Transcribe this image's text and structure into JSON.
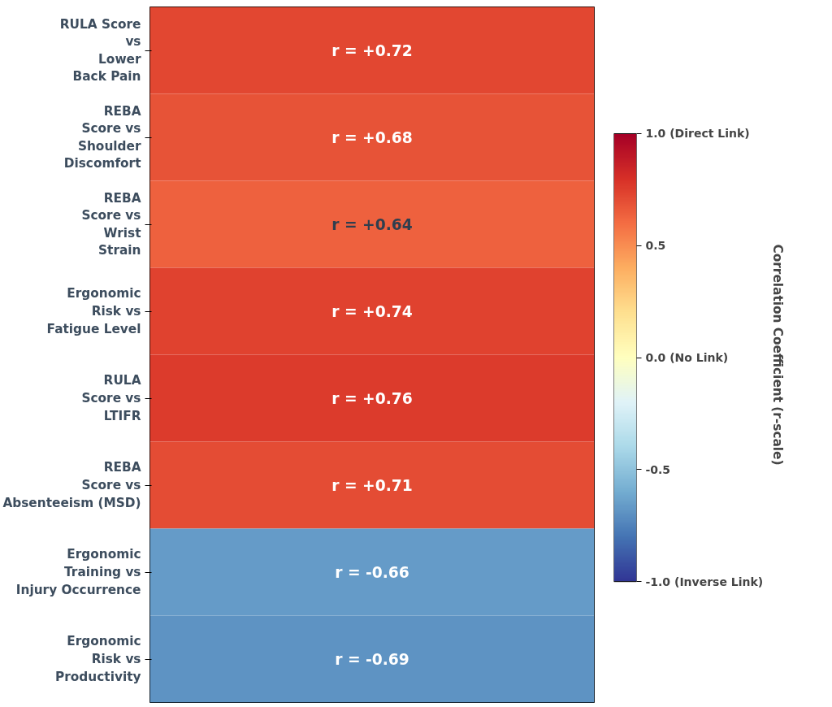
{
  "chart_data": {
    "type": "heatmap",
    "categories": [
      null
    ],
    "y_categories": [
      "RULA Score\nvs\nLower\nBack Pain",
      "REBA\nScore vs\nShoulder\nDiscomfort",
      "REBA\nScore vs\nWrist\nStrain",
      "Ergonomic\nRisk vs\nFatigue Level",
      "RULA\nScore vs\nLTIFR",
      "REBA\nScore vs\nAbsenteeism (MSD)",
      "Ergonomic\nTraining vs\nInjury Occurrence",
      "Ergonomic\nRisk vs\nProductivity"
    ],
    "cells": [
      [
        0.72
      ],
      [
        0.68
      ],
      [
        0.64
      ],
      [
        0.74
      ],
      [
        0.76
      ],
      [
        0.71
      ],
      [
        -0.66
      ],
      [
        -0.69
      ]
    ],
    "cell_labels": [
      [
        "r = +0.72"
      ],
      [
        "r = +0.68"
      ],
      [
        "r = +0.64"
      ],
      [
        "r = +0.74"
      ],
      [
        "r = +0.76"
      ],
      [
        "r = +0.71"
      ],
      [
        "r = -0.66"
      ],
      [
        "r = -0.69"
      ]
    ],
    "clim": [
      -1.0,
      1.0
    ],
    "cticks": [
      {
        "value": 1.0,
        "label": "1.0 (Direct Link)"
      },
      0.5,
      {
        "value": 0.0,
        "label": "0.0 (No Link)"
      },
      -0.5,
      {
        "value": -1.0,
        "label": "-1.0 (Inverse Link)"
      }
    ],
    "clabel": "Correlation Coefficient (r-scale)"
  }
}
